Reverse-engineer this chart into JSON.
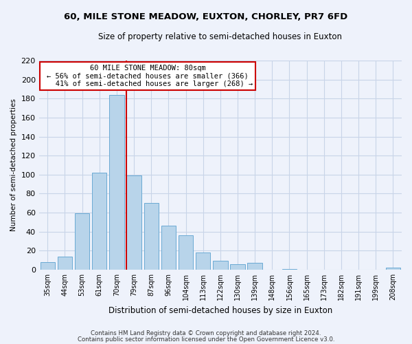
{
  "title": "60, MILE STONE MEADOW, EUXTON, CHORLEY, PR7 6FD",
  "subtitle": "Size of property relative to semi-detached houses in Euxton",
  "xlabel": "Distribution of semi-detached houses by size in Euxton",
  "ylabel": "Number of semi-detached properties",
  "bar_color": "#b8d4ea",
  "bar_edge_color": "#6aaad4",
  "categories": [
    "35sqm",
    "44sqm",
    "53sqm",
    "61sqm",
    "70sqm",
    "79sqm",
    "87sqm",
    "96sqm",
    "104sqm",
    "113sqm",
    "122sqm",
    "130sqm",
    "139sqm",
    "148sqm",
    "156sqm",
    "165sqm",
    "173sqm",
    "182sqm",
    "191sqm",
    "199sqm",
    "208sqm"
  ],
  "values": [
    8,
    14,
    59,
    102,
    184,
    99,
    70,
    46,
    36,
    18,
    9,
    6,
    7,
    0,
    1,
    0,
    0,
    0,
    0,
    0,
    2
  ],
  "marker_index": 5,
  "marker_color": "#cc0000",
  "annotation_title": "60 MILE STONE MEADOW: 80sqm",
  "annotation_line1": "← 56% of semi-detached houses are smaller (366)",
  "annotation_line2": "   41% of semi-detached houses are larger (268) →",
  "annotation_box_color": "#ffffff",
  "annotation_box_edge": "#cc0000",
  "ylim": [
    0,
    220
  ],
  "yticks": [
    0,
    20,
    40,
    60,
    80,
    100,
    120,
    140,
    160,
    180,
    200,
    220
  ],
  "footer1": "Contains HM Land Registry data © Crown copyright and database right 2024.",
  "footer2": "Contains public sector information licensed under the Open Government Licence v3.0.",
  "bg_color": "#eef2fb",
  "grid_color": "#c8d4e8"
}
